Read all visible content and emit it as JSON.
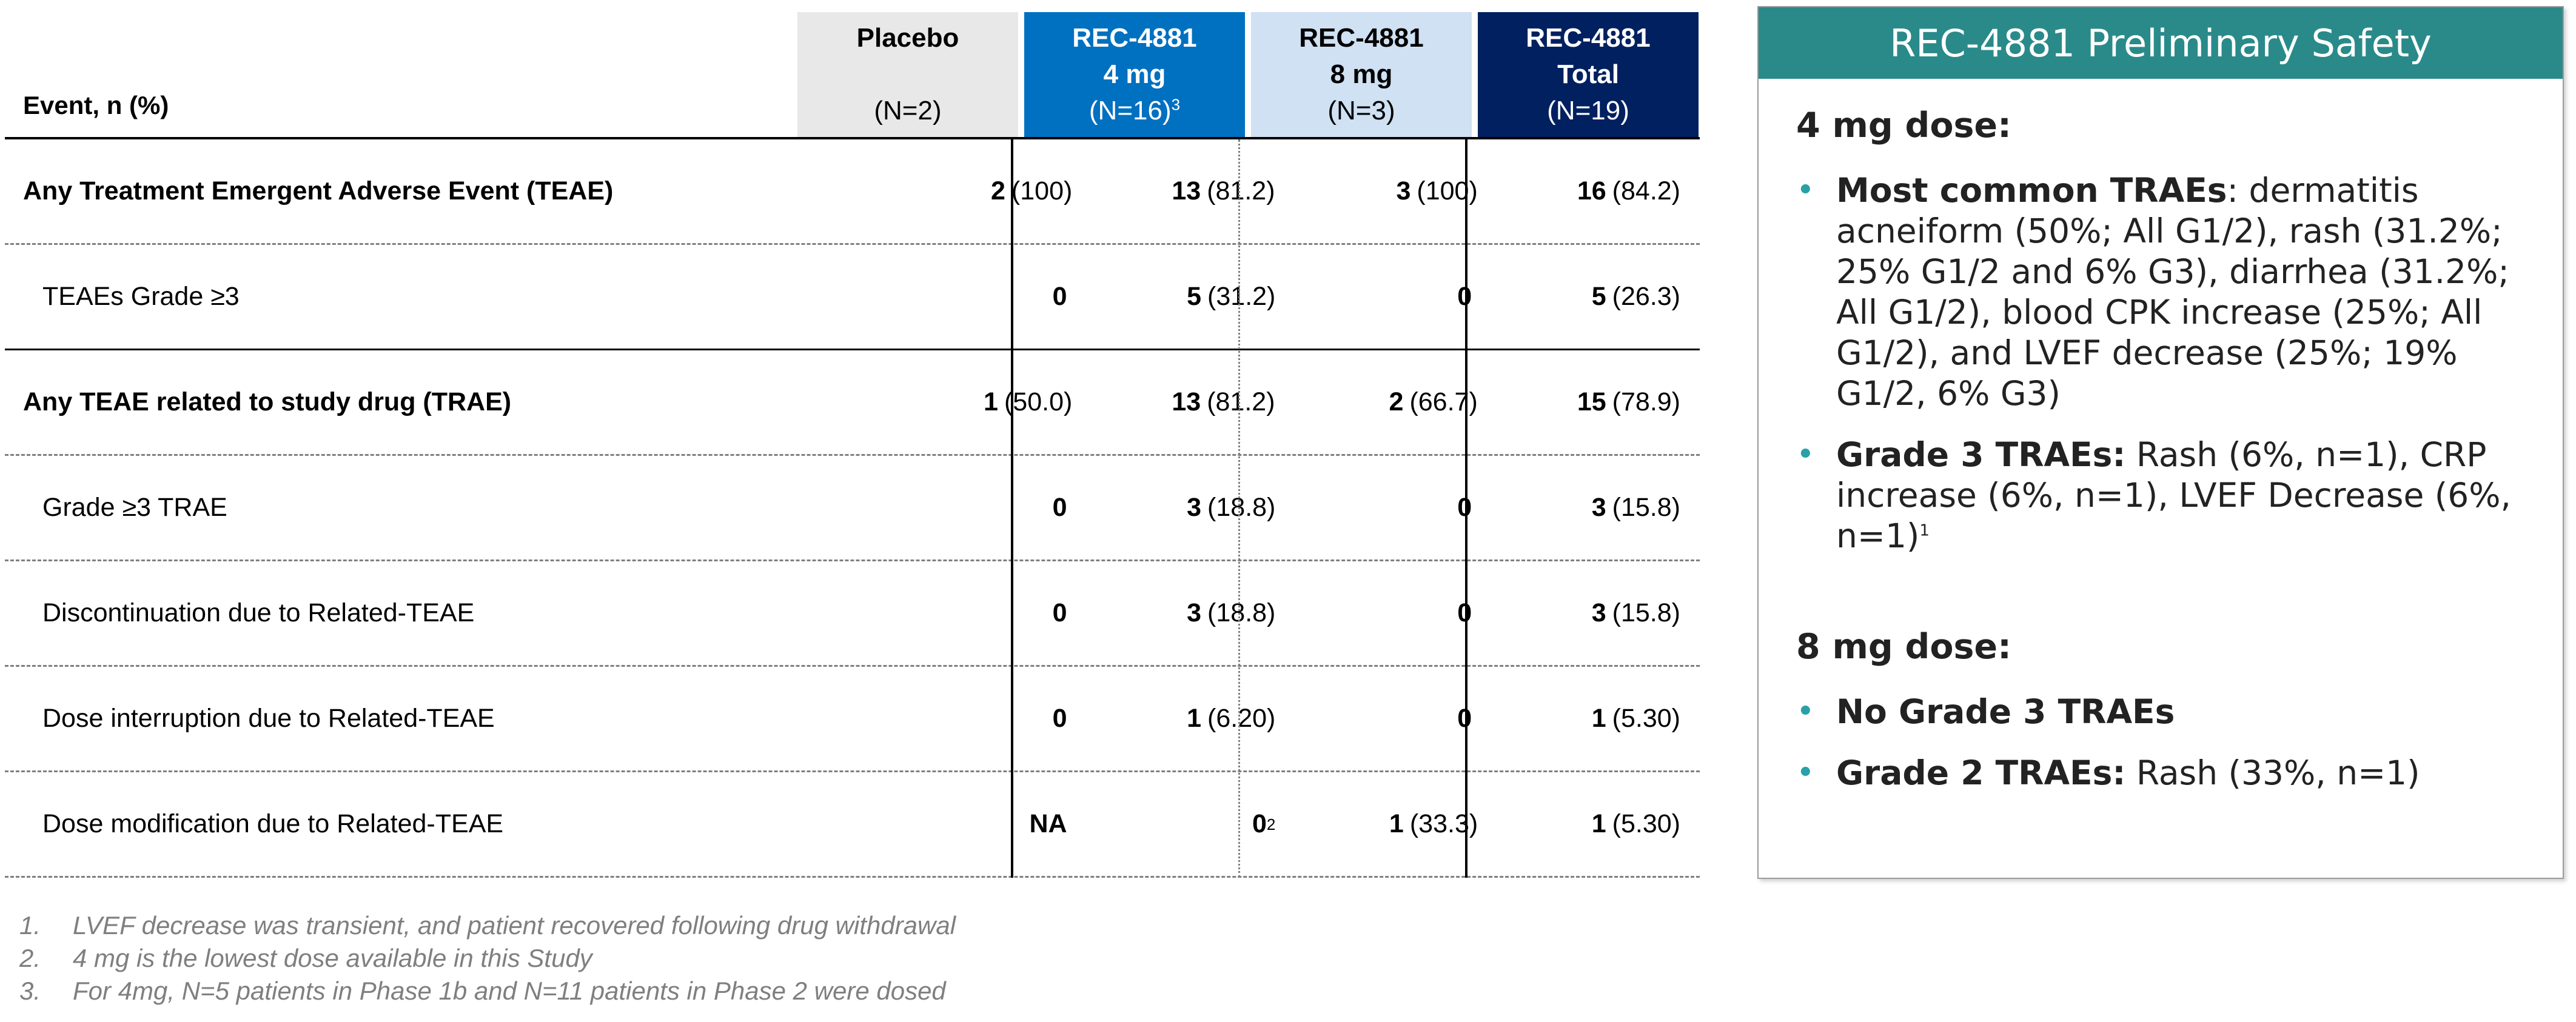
{
  "table": {
    "event_header": "Event, n (%)",
    "columns": [
      {
        "line1": "Placebo",
        "line2": "",
        "line3": "(N=2)",
        "sup": ""
      },
      {
        "line1": "REC-4881",
        "line2": "4 mg",
        "line3": "(N=16)",
        "sup": "3"
      },
      {
        "line1": "REC-4881",
        "line2": "8 mg",
        "line3": "(N=3)",
        "sup": ""
      },
      {
        "line1": "REC-4881",
        "line2": "Total",
        "line3": "(N=19)",
        "sup": ""
      }
    ],
    "rows": [
      {
        "label": "Any Treatment Emergent Adverse Event (TEAE)",
        "cells": [
          {
            "n": "2",
            "pct": "(100)"
          },
          {
            "n": "13",
            "pct": "(81.2)"
          },
          {
            "n": "3",
            "pct": "(100)"
          },
          {
            "n": "16",
            "pct": "(84.2)"
          }
        ]
      },
      {
        "label": "TEAEs Grade ≥3",
        "cells": [
          {
            "n": "0",
            "pct": ""
          },
          {
            "n": "5",
            "pct": "(31.2)"
          },
          {
            "n": "0",
            "pct": ""
          },
          {
            "n": "5",
            "pct": "(26.3)"
          }
        ]
      },
      {
        "label": "Any TEAE related to study drug (TRAE)",
        "cells": [
          {
            "n": "1",
            "pct": "(50.0)"
          },
          {
            "n": "13",
            "pct": "(81.2)"
          },
          {
            "n": "2",
            "pct": "(66.7)"
          },
          {
            "n": "15",
            "pct": "(78.9)"
          }
        ]
      },
      {
        "label": "Grade ≥3 TRAE",
        "cells": [
          {
            "n": "0",
            "pct": ""
          },
          {
            "n": "3",
            "pct": "(18.8)"
          },
          {
            "n": "0",
            "pct": ""
          },
          {
            "n": "3",
            "pct": "(15.8)"
          }
        ]
      },
      {
        "label": "Discontinuation due to Related-TEAE",
        "cells": [
          {
            "n": "0",
            "pct": ""
          },
          {
            "n": "3",
            "pct": "(18.8)"
          },
          {
            "n": "0",
            "pct": ""
          },
          {
            "n": "3",
            "pct": "(15.8)"
          }
        ]
      },
      {
        "label": "Dose interruption due to Related-TEAE",
        "cells": [
          {
            "n": "0",
            "pct": ""
          },
          {
            "n": "1",
            "pct": "(6.20)"
          },
          {
            "n": "0",
            "pct": ""
          },
          {
            "n": "1",
            "pct": "(5.30)"
          }
        ]
      },
      {
        "label": "Dose modification due to Related-TEAE",
        "cells": [
          {
            "n": "NA",
            "pct": ""
          },
          {
            "n": "0",
            "pct": "",
            "sup": "2"
          },
          {
            "n": "1",
            "pct": "(33.3)"
          },
          {
            "n": "1",
            "pct": "(5.30)"
          }
        ]
      }
    ]
  },
  "footnotes": [
    {
      "num": "1.",
      "text": "LVEF decrease was transient, and patient recovered following drug withdrawal"
    },
    {
      "num": "2.",
      "text": "4 mg is the lowest dose available in this Study"
    },
    {
      "num": "3.",
      "text": "For 4mg, N=5 patients in Phase 1b and N=11 patients in Phase 2 were dosed"
    }
  ],
  "panel": {
    "title": "REC-4881 Preliminary Safety",
    "dose4": {
      "heading": "4 mg dose:",
      "b1_bold": "Most common TRAEs",
      "b1_text": ": dermatitis acneiform (50%; All G1/2), rash (31.2%; 25% G1/2 and 6% G3), diarrhea (31.2%; All G1/2), blood CPK increase (25%; All G1/2), and LVEF decrease (25%; 19% G1/2, 6% G3)",
      "b2_bold": "Grade 3 TRAEs:",
      "b2_text": " Rash (6%, n=1), CRP increase (6%, n=1), LVEF Decrease (6%, n=1)",
      "b2_sup": "1"
    },
    "dose8": {
      "heading": "8 mg dose:",
      "b1_bold": "No Grade 3 TRAEs",
      "b2_bold": "Grade 2 TRAEs:",
      "b2_text": " Rash (33%, n=1)"
    },
    "colors": {
      "title_bg": "#2a8a8a",
      "bullet": "#2aa0a8"
    }
  },
  "header_colors": {
    "placebo": "#e8e8e8",
    "mg4": "#0070c0",
    "mg8": "#cfe1f3",
    "total": "#002060"
  }
}
